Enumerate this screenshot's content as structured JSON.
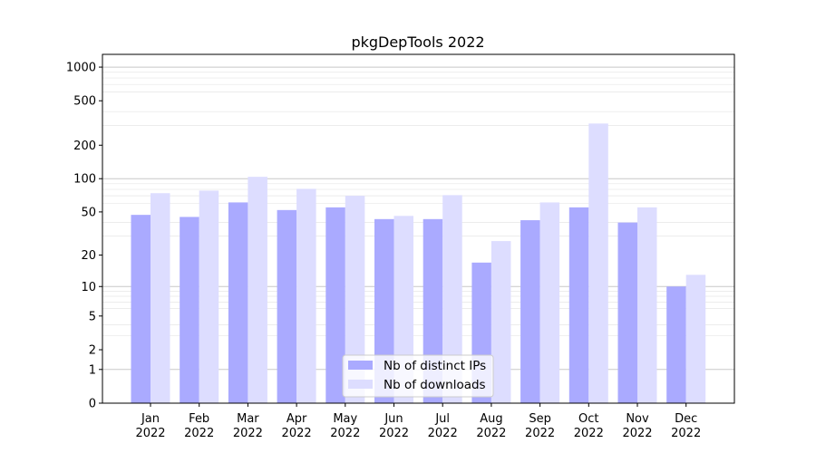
{
  "chart_data": {
    "type": "bar",
    "title": "pkgDepTools 2022",
    "xlabel": "",
    "ylabel": "",
    "y_scale": "log (log1p-style, includes 0)",
    "ylim": [
      0,
      1300
    ],
    "grid": "horizontal major and minor lines",
    "legend_position": "bottom-center",
    "categories": [
      "Jan\n2022",
      "Feb\n2022",
      "Mar\n2022",
      "Apr\n2022",
      "May\n2022",
      "Jun\n2022",
      "Jul\n2022",
      "Aug\n2022",
      "Sep\n2022",
      "Oct\n2022",
      "Nov\n2022",
      "Dec\n2022"
    ],
    "y_ticks": [
      0,
      1,
      2,
      5,
      10,
      20,
      50,
      100,
      200,
      500,
      1000
    ],
    "y_tick_labels": [
      "0",
      "1",
      "2",
      "5",
      "10",
      "20",
      "50",
      "100",
      "200",
      "500",
      "1000"
    ],
    "series": [
      {
        "name": "Nb of distinct IPs",
        "color": "#aaaaff",
        "values": [
          47,
          45,
          61,
          52,
          55,
          43,
          43,
          17,
          42,
          55,
          40,
          10
        ]
      },
      {
        "name": "Nb of downloads",
        "color": "#ddddff",
        "values": [
          74,
          78,
          104,
          81,
          70,
          46,
          71,
          27,
          61,
          313,
          55,
          13
        ]
      }
    ]
  }
}
